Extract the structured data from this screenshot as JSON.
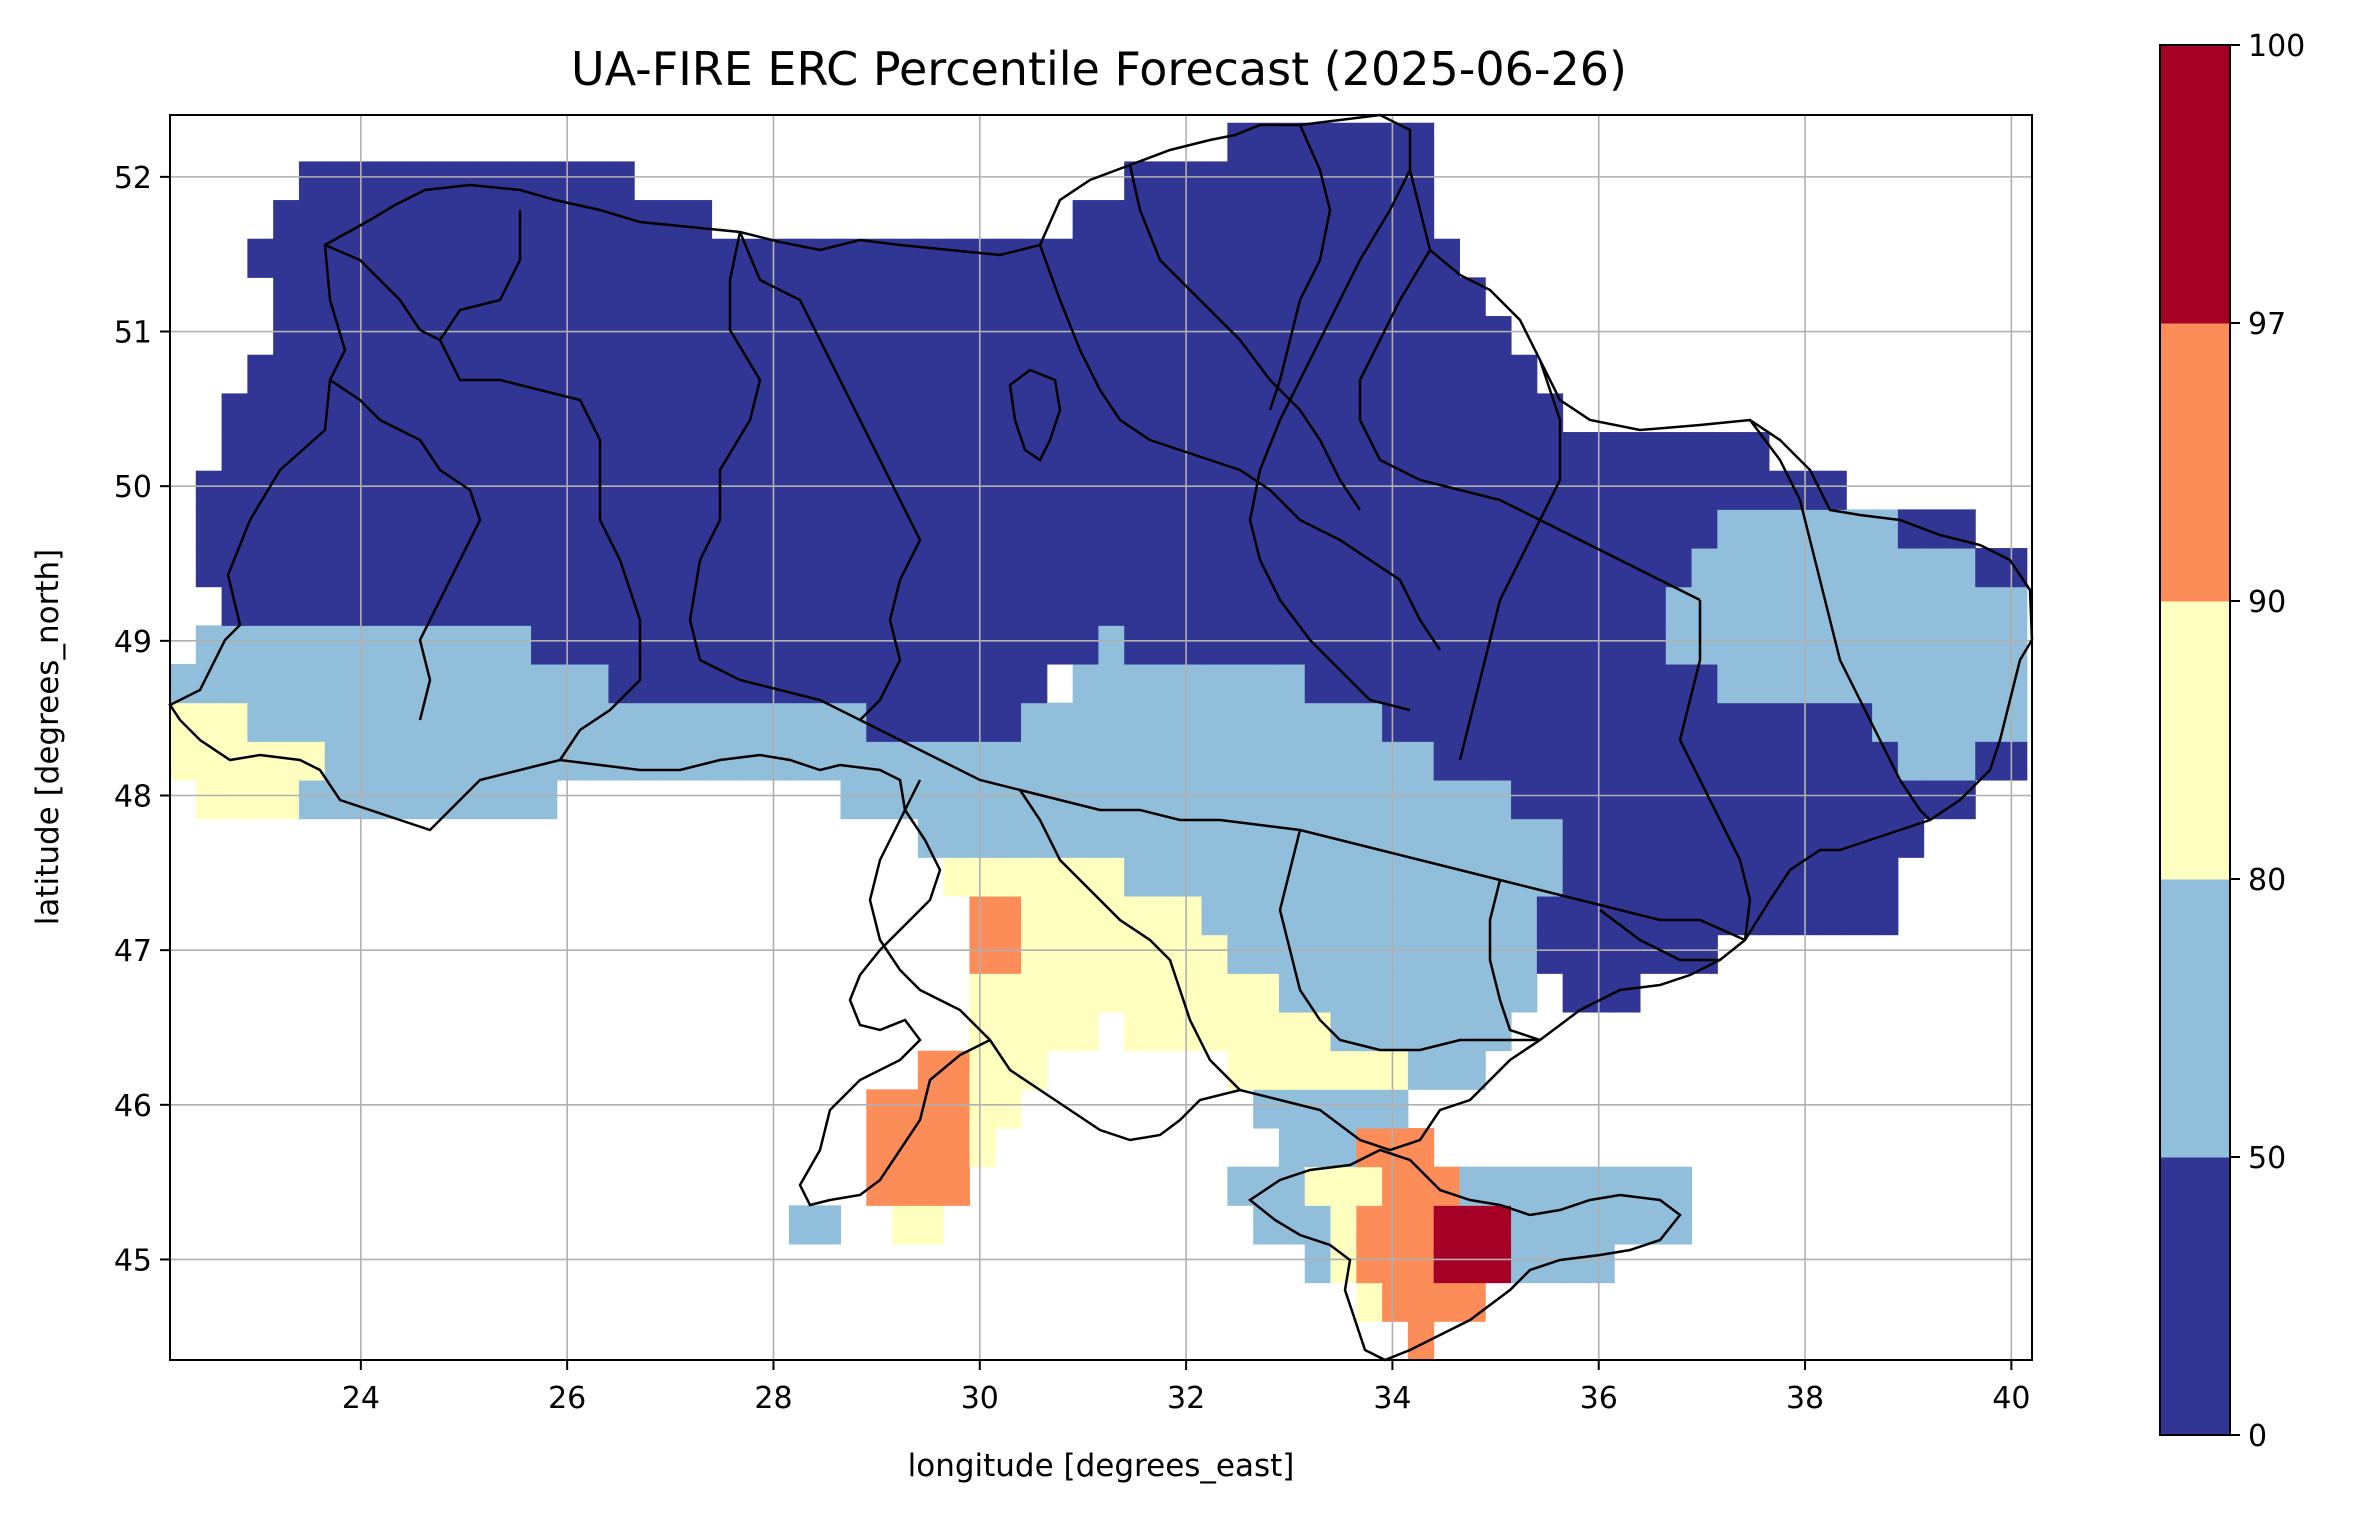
{
  "figure": {
    "title": "UA-FIRE ERC Percentile Forecast (2025-06-26)",
    "xlabel": "longitude [degrees_east]",
    "ylabel": "latitude [degrees_north]"
  },
  "map_data": {
    "type": "gridded-map",
    "region": "Ukraine",
    "variable": "ERC percentile",
    "lon_range": [
      22.15,
      40.2
    ],
    "lat_range": [
      44.35,
      52.4
    ],
    "x_ticks": [
      "24",
      "26",
      "28",
      "30",
      "32",
      "34",
      "36",
      "38",
      "40"
    ],
    "y_ticks": [
      "45",
      "46",
      "47",
      "48",
      "49",
      "50",
      "51",
      "52"
    ],
    "grid": true,
    "colorbar": {
      "placement": "right",
      "boundaries": [
        "0",
        "50",
        "80",
        "90",
        "97",
        "100"
      ],
      "colors": [
        "#313695",
        "#91bfdb",
        "#ffffbf",
        "#fc8d59",
        "#a50026"
      ]
    },
    "regions": [
      {
        "category": "0-50",
        "color": "#313695",
        "description": "north and west of the country"
      },
      {
        "category": "50-80",
        "color": "#91bfdb",
        "description": "central-southern belt and west"
      },
      {
        "category": "80-90",
        "color": "#ffffbf",
        "description": "Odesa, Mykolaiv and Kherson coast"
      },
      {
        "category": "90-97",
        "color": "#fc8d59",
        "description": "Danube delta and central Crimea"
      },
      {
        "category": "97-100",
        "color": "#a50026",
        "description": "south-central Crimea"
      }
    ]
  }
}
